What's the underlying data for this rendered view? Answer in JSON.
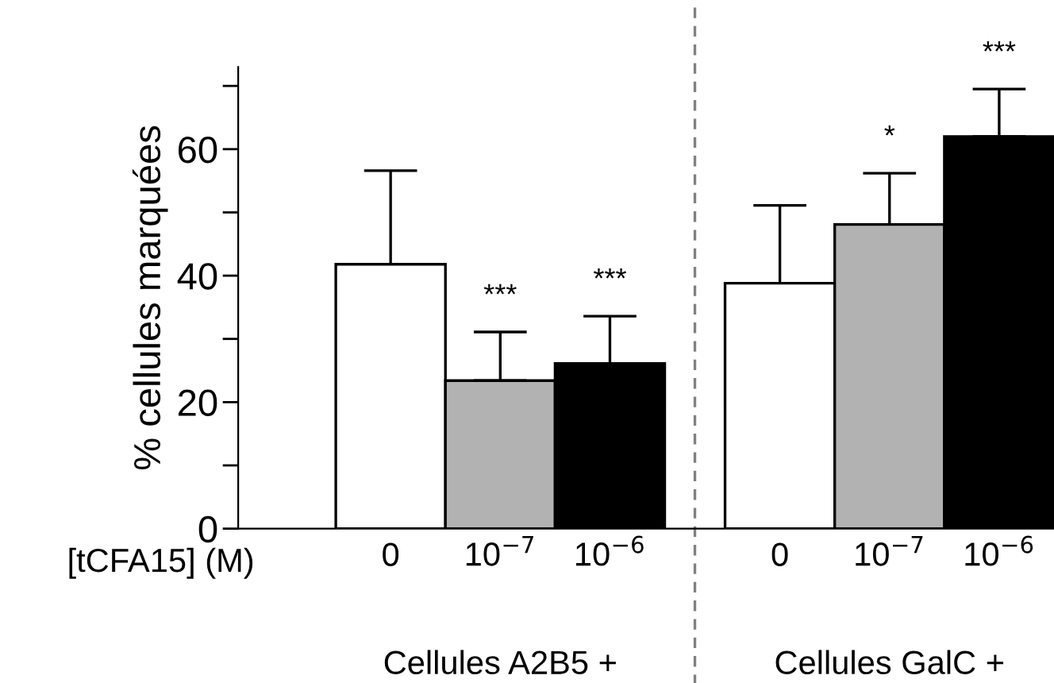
{
  "chart_data": {
    "type": "bar",
    "ylabel": "% cellules marquées",
    "xlabel": "[tCFA15] (M)",
    "categories": [
      "0",
      "10$^{−7}$",
      "10$^{−6}$",
      "0",
      "10$^{−7}$",
      "10$^{−6}$"
    ],
    "values": [
      41.8,
      23.4,
      26.1,
      38.8,
      48.1,
      62.0
    ],
    "colors": [
      "#ffffff",
      "#b2b2b2",
      "#000000",
      "#ffffff",
      "#b2b2b2",
      "#000000"
    ],
    "errors": [
      [
        41.8,
        56.6
      ],
      [
        23.4,
        31.1
      ],
      [
        26.1,
        33.6
      ],
      [
        38.8,
        51.1
      ],
      [
        48.1,
        56.2
      ],
      [
        62.0,
        69.5
      ]
    ],
    "value_labels": [
      null,
      "***",
      "***",
      null,
      "*",
      "***"
    ],
    "ylim": [
      0,
      73
    ],
    "yticks": [
      0,
      {
        "value": 10,
        "label": null
      },
      20,
      {
        "value": 30,
        "label": null
      },
      40,
      {
        "value": 50,
        "label": null
      },
      60,
      {
        "value": 70,
        "label": null
      }
    ],
    "annotations": [
      "Cellules A2B5 +",
      "Cellules GalC +"
    ]
  }
}
